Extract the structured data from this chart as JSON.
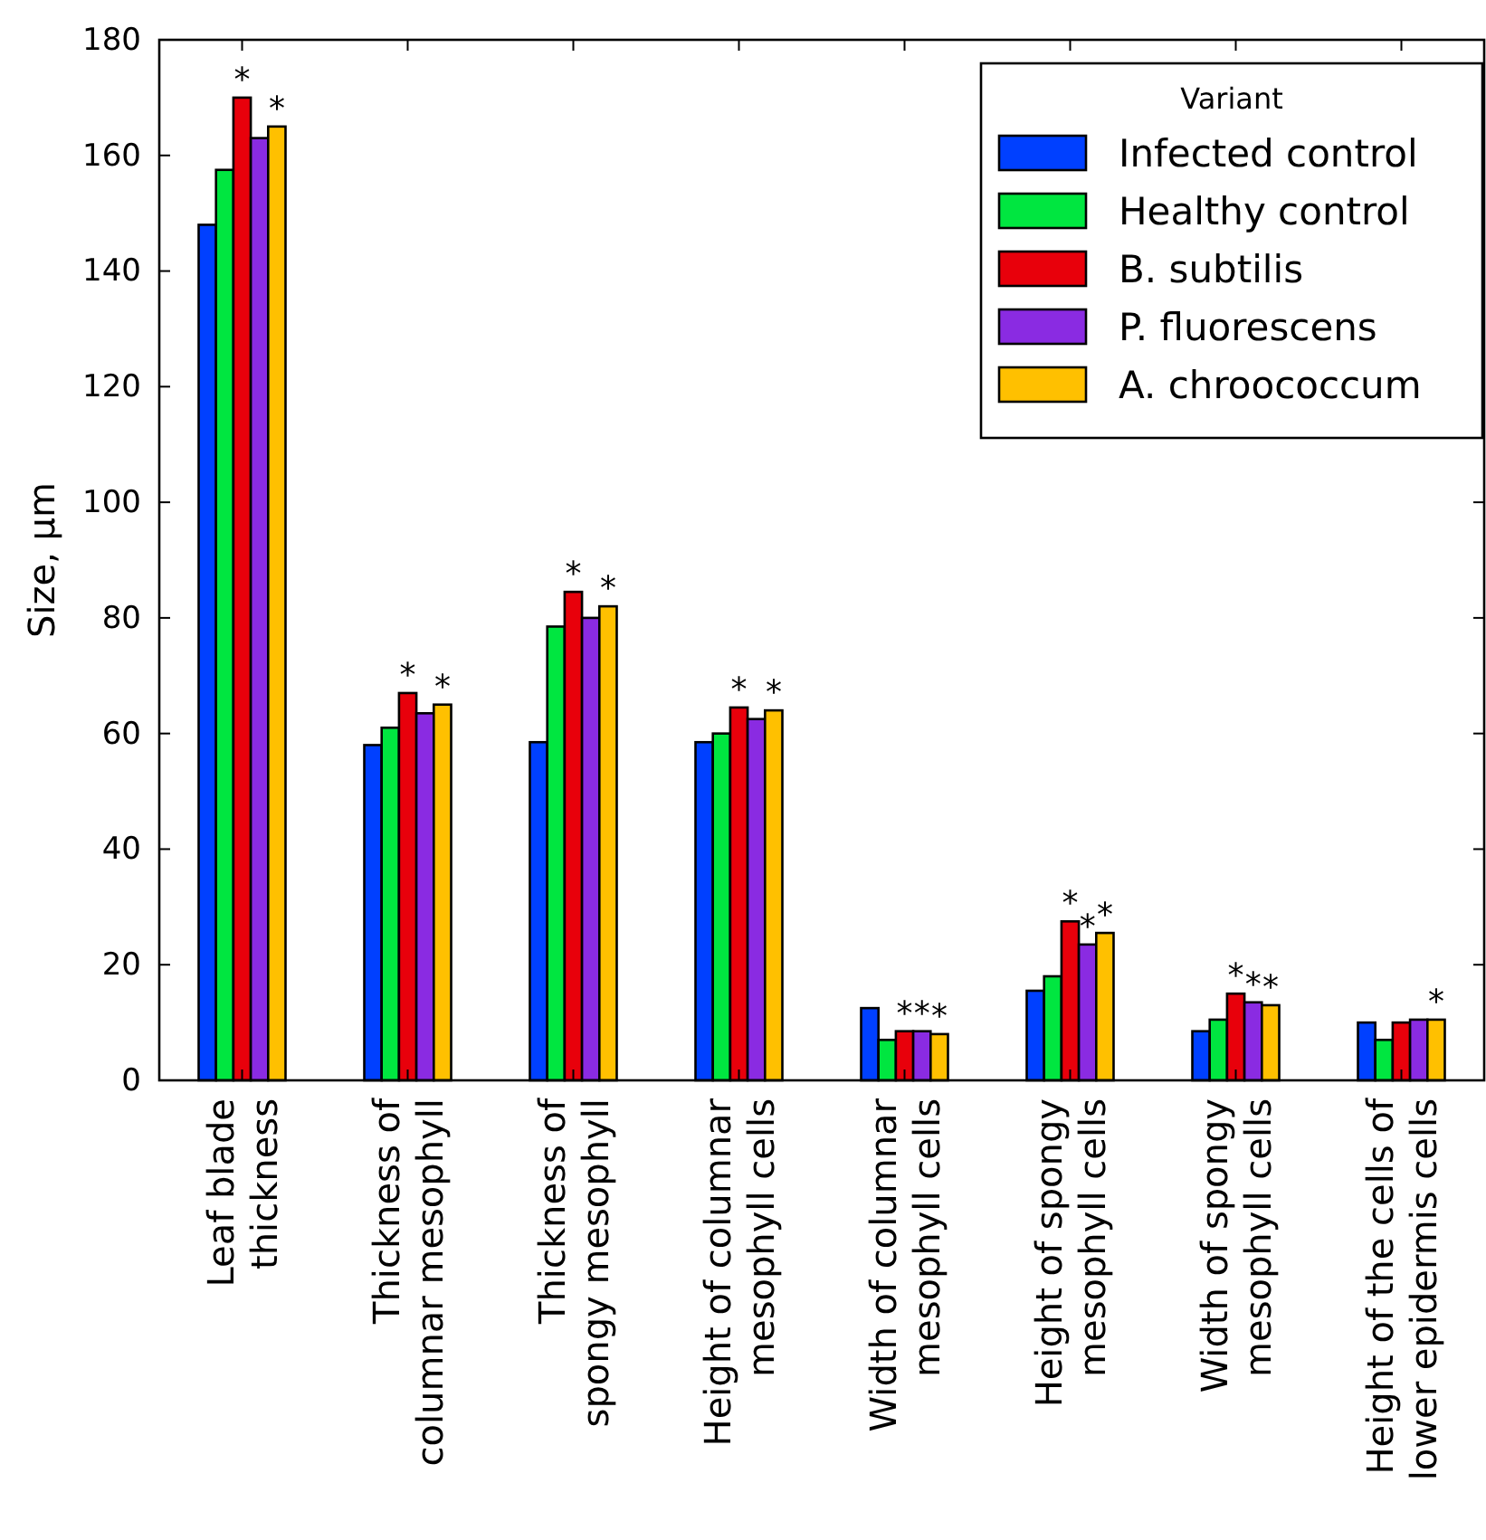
{
  "chart_data": {
    "type": "bar",
    "ylabel": "Size, µm",
    "legend_title": "Variant",
    "legend": "top right",
    "grid": false,
    "categories": [
      "Leaf blade\nthickness",
      "Thickness of\ncolumnar mesophyll",
      "Thickness of\nspongy mesophyll",
      "Height of columnar\nmesophyll cells",
      "Width of columnar\nmesophyll cells",
      "Height of spongy\nmesophyll cells",
      "Width of spongy\nmesophyll cells",
      "Height of the cells of\nlower epidermis cells"
    ],
    "ylim": [
      0,
      180
    ],
    "yticks": [
      0,
      20,
      40,
      60,
      80,
      100,
      120,
      140,
      160,
      180
    ],
    "series": [
      {
        "name": "Infected control",
        "color": "#0040ff",
        "values": [
          148,
          58,
          58.5,
          58.5,
          12.5,
          15.5,
          8.5,
          10
        ]
      },
      {
        "name": "Healthy control",
        "color": "#00e640",
        "values": [
          157.5,
          61,
          78.5,
          60,
          7,
          18,
          10.5,
          7
        ]
      },
      {
        "name": "B. subtilis",
        "color": "#e8000b",
        "values": [
          170,
          67,
          84.5,
          64.5,
          8.5,
          27.5,
          15,
          10
        ]
      },
      {
        "name": "P. fluorescens",
        "color": "#8a2be2",
        "values": [
          163,
          63.5,
          80,
          62.5,
          8.5,
          23.5,
          13.5,
          10.5
        ]
      },
      {
        "name": "A. chroococcum",
        "color": "#ffc000",
        "values": [
          165,
          65,
          82,
          64,
          8,
          25.5,
          13,
          10.5
        ]
      }
    ],
    "annotations": [
      {
        "text": "*",
        "x": "Leaf blade\nthickness",
        "y": 170
      },
      {
        "text": "*",
        "x": "Leaf blade\nthickness",
        "y": 165
      },
      {
        "text": "*",
        "x": "Thickness of\ncolumnar mesophyll",
        "y": 67
      },
      {
        "text": "*",
        "x": "Thickness of\ncolumnar mesophyll",
        "y": 65
      },
      {
        "text": "*",
        "x": "Thickness of\nspongy mesophyll",
        "y": 84.5
      },
      {
        "text": "*",
        "x": "Thickness of\nspongy mesophyll",
        "y": 82
      },
      {
        "text": "*",
        "x": "Height of columnar\nmesophyll cells",
        "y": 64.5
      },
      {
        "text": "*",
        "x": "Height of columnar\nmesophyll cells",
        "y": 64
      },
      {
        "text": "*",
        "x": "Width of columnar\nmesophyll cells",
        "y": 8.5
      },
      {
        "text": "*",
        "x": "Width of columnar\nmesophyll cells",
        "y": 8.5
      },
      {
        "text": "*",
        "x": "Width of columnar\nmesophyll cells",
        "y": 8
      },
      {
        "text": "*",
        "x": "Height of spongy\nmesophyll cells",
        "y": 27.5
      },
      {
        "text": "*",
        "x": "Height of spongy\nmesophyll cells",
        "y": 23.5
      },
      {
        "text": "*",
        "x": "Height of spongy\nmesophyll cells",
        "y": 25.5
      },
      {
        "text": "*",
        "x": "Width of spongy\nmesophyll cells",
        "y": 15
      },
      {
        "text": "*",
        "x": "Width of spongy\nmesophyll cells",
        "y": 13.5
      },
      {
        "text": "*",
        "x": "Width of spongy\nmesophyll cells",
        "y": 13
      },
      {
        "text": "*",
        "x": "Height of the cells of\nlower epidermis cells",
        "y": 10.5
      }
    ]
  }
}
